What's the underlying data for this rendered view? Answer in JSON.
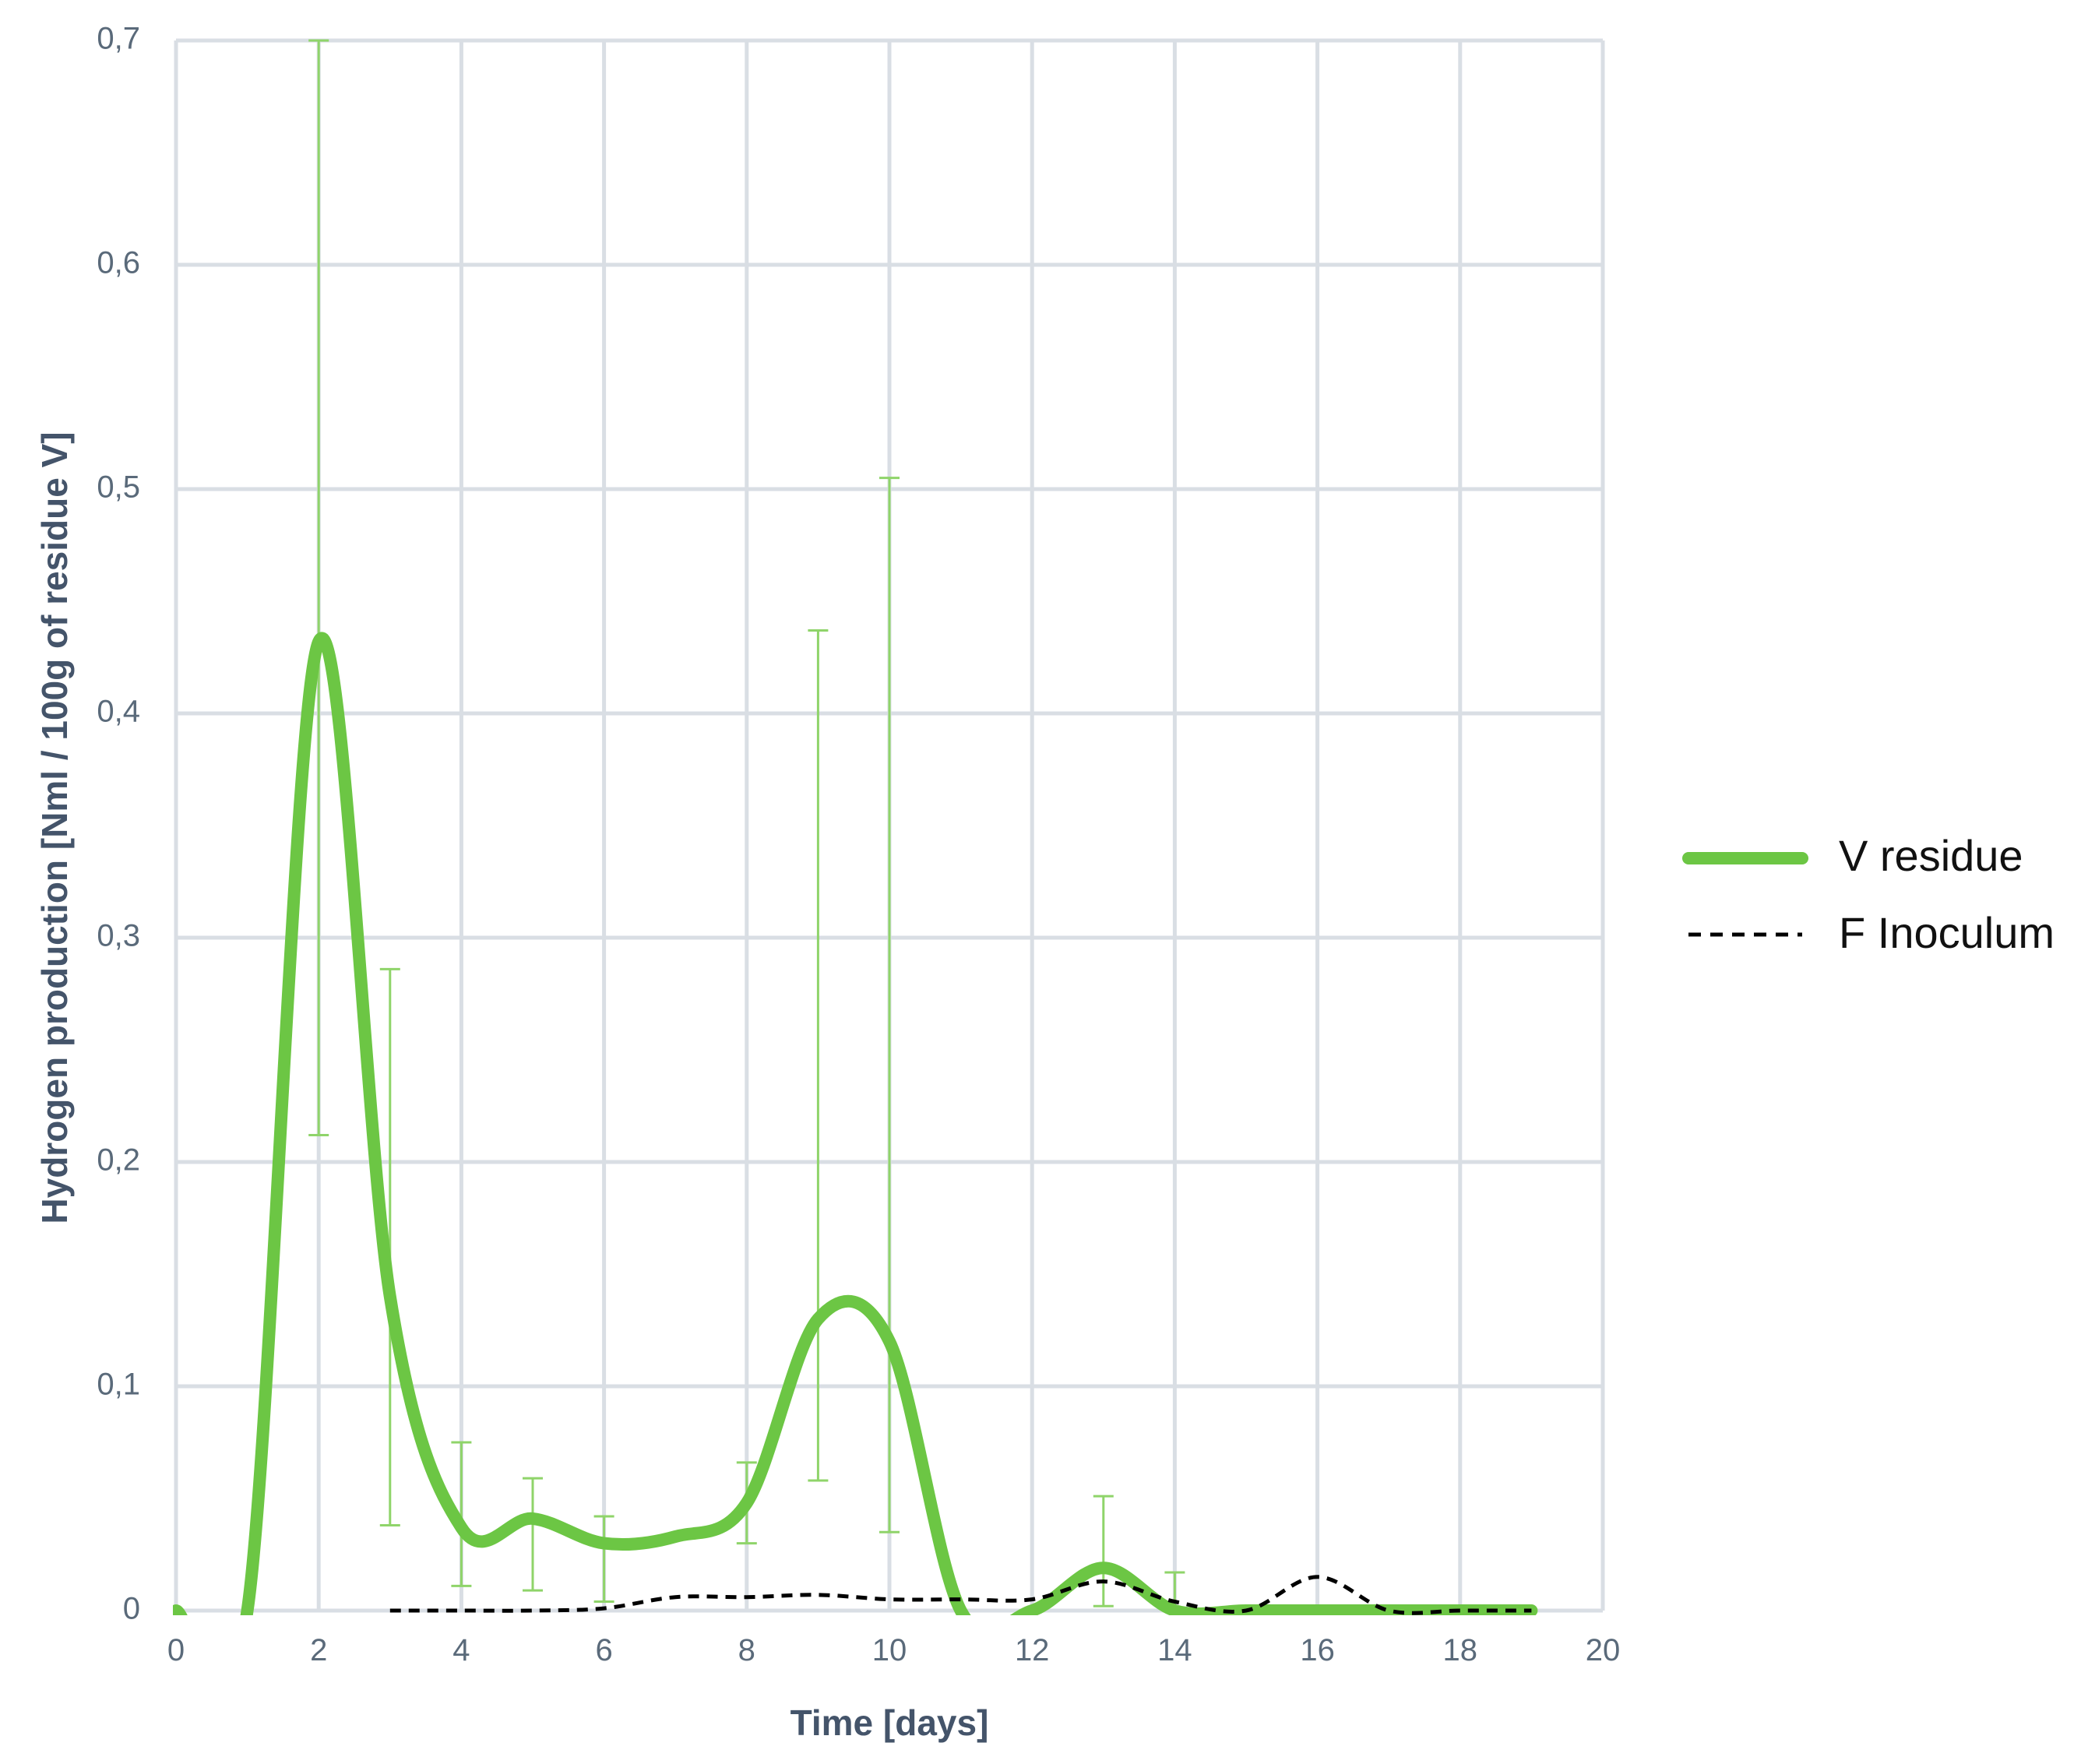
{
  "chart_data": {
    "type": "line",
    "title": "",
    "xlabel": "Time [days]",
    "ylabel": "Hydrogen production [Nml / 100g of residue V]",
    "xlim": [
      0,
      20
    ],
    "ylim": [
      0,
      0.7
    ],
    "x_ticks": [
      0,
      2,
      4,
      6,
      8,
      10,
      12,
      14,
      16,
      18,
      20
    ],
    "x_tick_labels": [
      "0",
      "2",
      "4",
      "6",
      "8",
      "10",
      "12",
      "14",
      "16",
      "18",
      "20"
    ],
    "y_ticks": [
      0,
      0.1,
      0.2,
      0.3,
      0.4,
      0.5,
      0.6,
      0.7
    ],
    "y_tick_labels": [
      "0",
      "0,1",
      "0,2",
      "0,3",
      "0,4",
      "0,5",
      "0,6",
      "0,7"
    ],
    "grid": true,
    "legend_position": "right",
    "series": [
      {
        "name": "V residue",
        "style": "solid-thick",
        "color": "#6cc644",
        "x": [
          0,
          1,
          2,
          3,
          4,
          5,
          6,
          7,
          8,
          9,
          10,
          11,
          12,
          13,
          14,
          15,
          16,
          17,
          18,
          19
        ],
        "y": [
          0,
          0,
          0.432,
          0.14,
          0.037,
          0.041,
          0.03,
          0.033,
          0.048,
          0.13,
          0.12,
          0,
          0,
          0.019,
          0,
          0,
          0,
          0,
          0,
          0
        ],
        "error_bars": [
          {
            "x": 2,
            "low": 0.212,
            "high": 0.7
          },
          {
            "x": 3,
            "low": 0.038,
            "high": 0.286
          },
          {
            "x": 4,
            "low": 0.011,
            "high": 0.075
          },
          {
            "x": 5,
            "low": 0.009,
            "high": 0.059
          },
          {
            "x": 6,
            "low": 0.004,
            "high": 0.042
          },
          {
            "x": 8,
            "low": 0.03,
            "high": 0.066
          },
          {
            "x": 9,
            "low": 0.058,
            "high": 0.437
          },
          {
            "x": 10,
            "low": 0.035,
            "high": 0.505
          },
          {
            "x": 13,
            "low": 0.002,
            "high": 0.051
          },
          {
            "x": 14,
            "low": 0,
            "high": 0.017
          }
        ]
      },
      {
        "name": "F Inoculum",
        "style": "dashed",
        "color": "#000000",
        "x": [
          3,
          4,
          5,
          6,
          7,
          8,
          9,
          10,
          11,
          12,
          13,
          14,
          15,
          16,
          17,
          18,
          19
        ],
        "y": [
          0,
          0,
          0,
          0.001,
          0.006,
          0.006,
          0.007,
          0.005,
          0.005,
          0.005,
          0.013,
          0.004,
          0,
          0.015,
          0,
          0,
          0
        ]
      }
    ]
  }
}
